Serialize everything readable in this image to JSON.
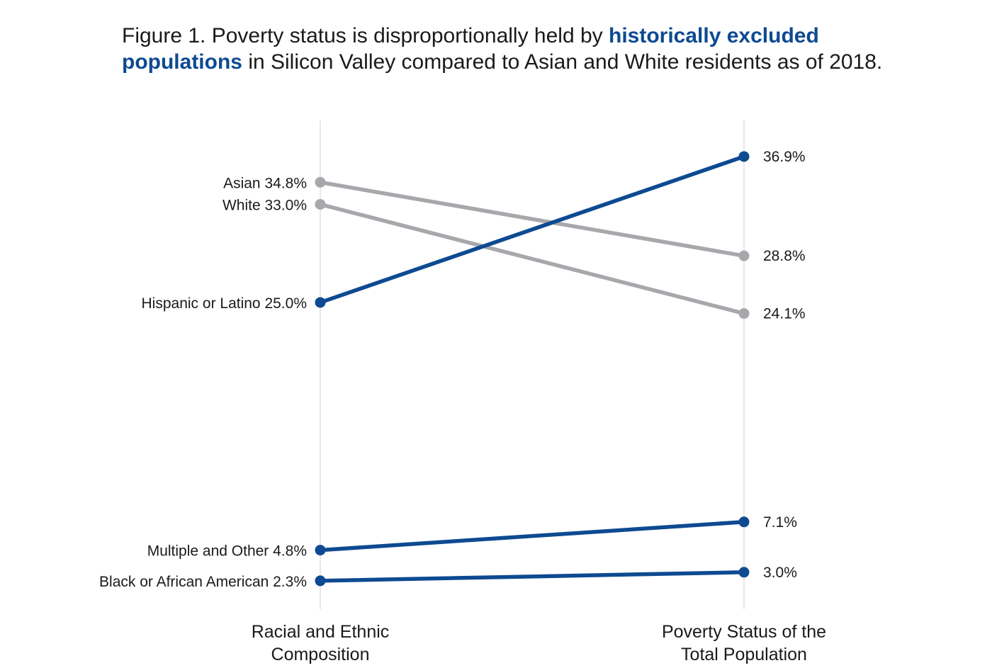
{
  "title": {
    "prefix": "Figure 1. Poverty status is disproportionally held by ",
    "highlight": "historically excluded populations",
    "suffix": " in Silicon Valley compared to Asian and White residents as of 2018."
  },
  "colors": {
    "highlight": "#0d4a91",
    "muted": "#a7a8ac",
    "axis_line": "#d8d8dc"
  },
  "chart_data": {
    "type": "slope",
    "categories": [
      "Racial and Ethnic Composition",
      "Poverty Status of the Total Population"
    ],
    "axis_labels": [
      [
        "Racial and Ethnic",
        "Composition"
      ],
      [
        "Poverty Status of the",
        "Total Population"
      ]
    ],
    "ylim": [
      0,
      40
    ],
    "series": [
      {
        "name": "Asian",
        "values": [
          34.8,
          28.8
        ],
        "left_label": "Asian 34.8%",
        "right_label": "28.8%",
        "group": "muted"
      },
      {
        "name": "White",
        "values": [
          33.0,
          24.1
        ],
        "left_label": "White 33.0%",
        "right_label": "24.1%",
        "group": "muted"
      },
      {
        "name": "Hispanic or Latino",
        "values": [
          25.0,
          36.9
        ],
        "left_label": "Hispanic or Latino 25.0%",
        "right_label": "36.9%",
        "group": "highlight"
      },
      {
        "name": "Multiple and Other",
        "values": [
          4.8,
          7.1
        ],
        "left_label": "Multiple and Other 4.8%",
        "right_label": "7.1%",
        "group": "highlight"
      },
      {
        "name": "Black or African American",
        "values": [
          2.3,
          3.0
        ],
        "left_label": "Black or African American 2.3%",
        "right_label": "3.0%",
        "group": "highlight"
      }
    ]
  }
}
